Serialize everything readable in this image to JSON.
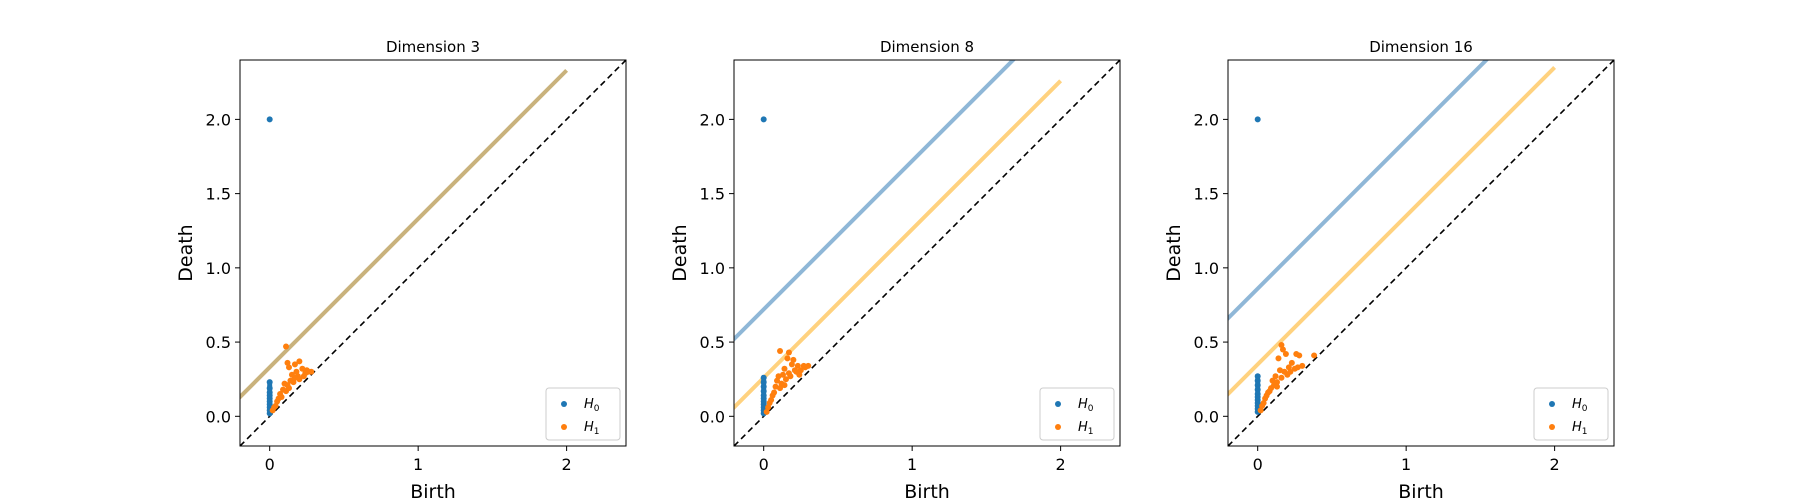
{
  "colors": {
    "h0": "#1f77b4",
    "h1": "#ff7f0e",
    "band_h0": "#8fb7d7",
    "band_h1": "#ffd27f",
    "band_merged": "#c9b27c",
    "diagonal": "#000000"
  },
  "chart_data": [
    {
      "type": "scatter",
      "title": "Dimension 3",
      "xlabel": "Birth",
      "ylabel": "Death",
      "xlim": [
        -0.2,
        2.4
      ],
      "ylim": [
        -0.2,
        2.4
      ],
      "xticks": [
        0,
        1,
        2
      ],
      "xtick_labels": [
        "0",
        "1",
        "2"
      ],
      "yticks": [
        0.0,
        0.5,
        1.0,
        1.5,
        2.0
      ],
      "ytick_labels": [
        "0.0",
        "0.5",
        "1.0",
        "1.5",
        "2.0"
      ],
      "legend_position": "bottom-right",
      "legend": [
        {
          "symbol": "H",
          "sub": "0",
          "color_key": "h0"
        },
        {
          "symbol": "H",
          "sub": "1",
          "color_key": "h1"
        }
      ],
      "diagonal": true,
      "bands": [
        {
          "offset": 0.33,
          "color_key": "band_merged",
          "x_end": 2.0
        }
      ],
      "series": [
        {
          "color_key": "h0",
          "birth": 0.0,
          "deaths": [
            2.0,
            0.23,
            0.19,
            0.16,
            0.14,
            0.12,
            0.1,
            0.08,
            0.06,
            0.04,
            0.02
          ]
        },
        {
          "color_key": "h1",
          "points": [
            [
              0.11,
              0.47
            ],
            [
              0.12,
              0.36
            ],
            [
              0.13,
              0.33
            ],
            [
              0.17,
              0.35
            ],
            [
              0.2,
              0.37
            ],
            [
              0.22,
              0.32
            ],
            [
              0.25,
              0.31
            ],
            [
              0.28,
              0.3
            ],
            [
              0.18,
              0.3
            ],
            [
              0.15,
              0.28
            ],
            [
              0.19,
              0.27
            ],
            [
              0.23,
              0.27
            ],
            [
              0.1,
              0.22
            ],
            [
              0.12,
              0.21
            ],
            [
              0.14,
              0.24
            ],
            [
              0.16,
              0.23
            ],
            [
              0.07,
              0.15
            ],
            [
              0.09,
              0.18
            ],
            [
              0.05,
              0.1
            ],
            [
              0.03,
              0.06
            ],
            [
              0.06,
              0.12
            ],
            [
              0.08,
              0.13
            ],
            [
              0.11,
              0.17
            ],
            [
              0.2,
              0.25
            ],
            [
              0.24,
              0.29
            ],
            [
              0.26,
              0.3
            ],
            [
              0.02,
              0.04
            ],
            [
              0.04,
              0.07
            ],
            [
              0.13,
              0.19
            ],
            [
              0.17,
              0.26
            ]
          ]
        }
      ]
    },
    {
      "type": "scatter",
      "title": "Dimension 8",
      "xlabel": "Birth",
      "ylabel": "Death",
      "xlim": [
        -0.2,
        2.4
      ],
      "ylim": [
        -0.2,
        2.4
      ],
      "xticks": [
        0,
        1,
        2
      ],
      "xtick_labels": [
        "0",
        "1",
        "2"
      ],
      "yticks": [
        0.0,
        0.5,
        1.0,
        1.5,
        2.0
      ],
      "ytick_labels": [
        "0.0",
        "0.5",
        "1.0",
        "1.5",
        "2.0"
      ],
      "legend_position": "bottom-right",
      "legend": [
        {
          "symbol": "H",
          "sub": "0",
          "color_key": "h0"
        },
        {
          "symbol": "H",
          "sub": "1",
          "color_key": "h1"
        }
      ],
      "diagonal": true,
      "bands": [
        {
          "offset": 0.72,
          "color_key": "band_h0",
          "x_end": 2.4
        },
        {
          "offset": 0.26,
          "color_key": "band_h1",
          "x_end": 2.0
        }
      ],
      "series": [
        {
          "color_key": "h0",
          "birth": 0.0,
          "deaths": [
            2.0,
            0.26,
            0.23,
            0.2,
            0.17,
            0.14,
            0.12,
            0.1,
            0.08,
            0.06,
            0.04,
            0.02
          ]
        },
        {
          "color_key": "h1",
          "points": [
            [
              0.11,
              0.44
            ],
            [
              0.17,
              0.43
            ],
            [
              0.16,
              0.39
            ],
            [
              0.2,
              0.38
            ],
            [
              0.19,
              0.35
            ],
            [
              0.23,
              0.34
            ],
            [
              0.27,
              0.34
            ],
            [
              0.3,
              0.34
            ],
            [
              0.14,
              0.32
            ],
            [
              0.21,
              0.31
            ],
            [
              0.25,
              0.31
            ],
            [
              0.1,
              0.27
            ],
            [
              0.13,
              0.28
            ],
            [
              0.17,
              0.29
            ],
            [
              0.08,
              0.2
            ],
            [
              0.09,
              0.24
            ],
            [
              0.12,
              0.22
            ],
            [
              0.15,
              0.25
            ],
            [
              0.06,
              0.14
            ],
            [
              0.04,
              0.09
            ],
            [
              0.03,
              0.06
            ],
            [
              0.05,
              0.11
            ],
            [
              0.07,
              0.16
            ],
            [
              0.11,
              0.19
            ],
            [
              0.18,
              0.27
            ],
            [
              0.22,
              0.3
            ],
            [
              0.28,
              0.33
            ],
            [
              0.02,
              0.03
            ],
            [
              0.14,
              0.21
            ],
            [
              0.24,
              0.28
            ]
          ]
        }
      ]
    },
    {
      "type": "scatter",
      "title": "Dimension 16",
      "xlabel": "Birth",
      "ylabel": "Death",
      "xlim": [
        -0.2,
        2.4
      ],
      "ylim": [
        -0.2,
        2.4
      ],
      "xticks": [
        0,
        1,
        2
      ],
      "xtick_labels": [
        "0",
        "1",
        "2"
      ],
      "yticks": [
        0.0,
        0.5,
        1.0,
        1.5,
        2.0
      ],
      "ytick_labels": [
        "0.0",
        "0.5",
        "1.0",
        "1.5",
        "2.0"
      ],
      "legend_position": "bottom-right",
      "legend": [
        {
          "symbol": "H",
          "sub": "0",
          "color_key": "h0"
        },
        {
          "symbol": "H",
          "sub": "1",
          "color_key": "h1"
        }
      ],
      "diagonal": true,
      "bands": [
        {
          "offset": 0.86,
          "color_key": "band_h0",
          "x_end": 2.4
        },
        {
          "offset": 0.35,
          "color_key": "band_h1",
          "x_end": 2.0
        }
      ],
      "series": [
        {
          "color_key": "h0",
          "birth": 0.0,
          "deaths": [
            2.0,
            0.27,
            0.24,
            0.21,
            0.18,
            0.15,
            0.13,
            0.11,
            0.09,
            0.07,
            0.05,
            0.03
          ]
        },
        {
          "color_key": "h1",
          "points": [
            [
              0.16,
              0.48
            ],
            [
              0.17,
              0.45
            ],
            [
              0.19,
              0.42
            ],
            [
              0.14,
              0.39
            ],
            [
              0.26,
              0.42
            ],
            [
              0.28,
              0.41
            ],
            [
              0.38,
              0.41
            ],
            [
              0.23,
              0.36
            ],
            [
              0.3,
              0.34
            ],
            [
              0.21,
              0.33
            ],
            [
              0.15,
              0.31
            ],
            [
              0.18,
              0.3
            ],
            [
              0.12,
              0.27
            ],
            [
              0.1,
              0.24
            ],
            [
              0.13,
              0.23
            ],
            [
              0.09,
              0.19
            ],
            [
              0.07,
              0.16
            ],
            [
              0.05,
              0.12
            ],
            [
              0.03,
              0.07
            ],
            [
              0.04,
              0.09
            ],
            [
              0.06,
              0.14
            ],
            [
              0.08,
              0.17
            ],
            [
              0.11,
              0.21
            ],
            [
              0.2,
              0.28
            ],
            [
              0.25,
              0.32
            ],
            [
              0.02,
              0.04
            ],
            [
              0.16,
              0.26
            ],
            [
              0.22,
              0.3
            ],
            [
              0.27,
              0.33
            ],
            [
              0.13,
              0.2
            ]
          ]
        }
      ]
    }
  ]
}
